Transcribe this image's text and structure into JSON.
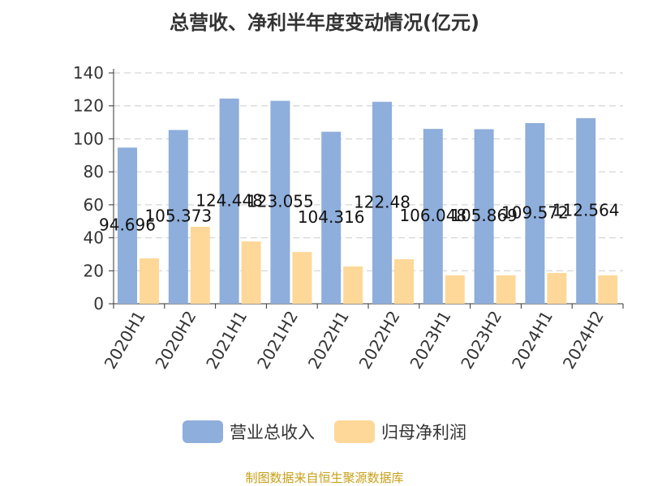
{
  "title": "总营收、净利半年度变动情况(亿元)",
  "source": "制图数据来自恒生聚源数据库",
  "colors": {
    "revenue": "#8eaedb",
    "profit": "#fed898"
  },
  "chart_data": {
    "type": "bar",
    "title": "总营收、净利半年度变动情况(亿元)",
    "categories": [
      "2020H1",
      "2020H2",
      "2021H1",
      "2021H2",
      "2022H1",
      "2022H2",
      "2023H1",
      "2023H2",
      "2024H1",
      "2024H2"
    ],
    "ylim": [
      0,
      140
    ],
    "yticks": [
      0,
      20,
      40,
      60,
      80,
      100,
      120,
      140
    ],
    "grid": true,
    "legend": "bottom",
    "series": [
      {
        "name": "营业总收入",
        "values": [
          94.696,
          105.373,
          124.448,
          123.055,
          104.316,
          122.48,
          106.048,
          105.869,
          109.572,
          112.564
        ],
        "labels": [
          "94.696",
          "105.373",
          "124.448",
          "123.055",
          "104.316",
          "122.48",
          "106.048",
          "105.869",
          "109.572",
          "112.564"
        ]
      },
      {
        "name": "归母净利润",
        "values": [
          27.5,
          46.7,
          37.8,
          31.4,
          22.6,
          27.0,
          17.2,
          17.2,
          18.7,
          17.2
        ]
      }
    ]
  }
}
